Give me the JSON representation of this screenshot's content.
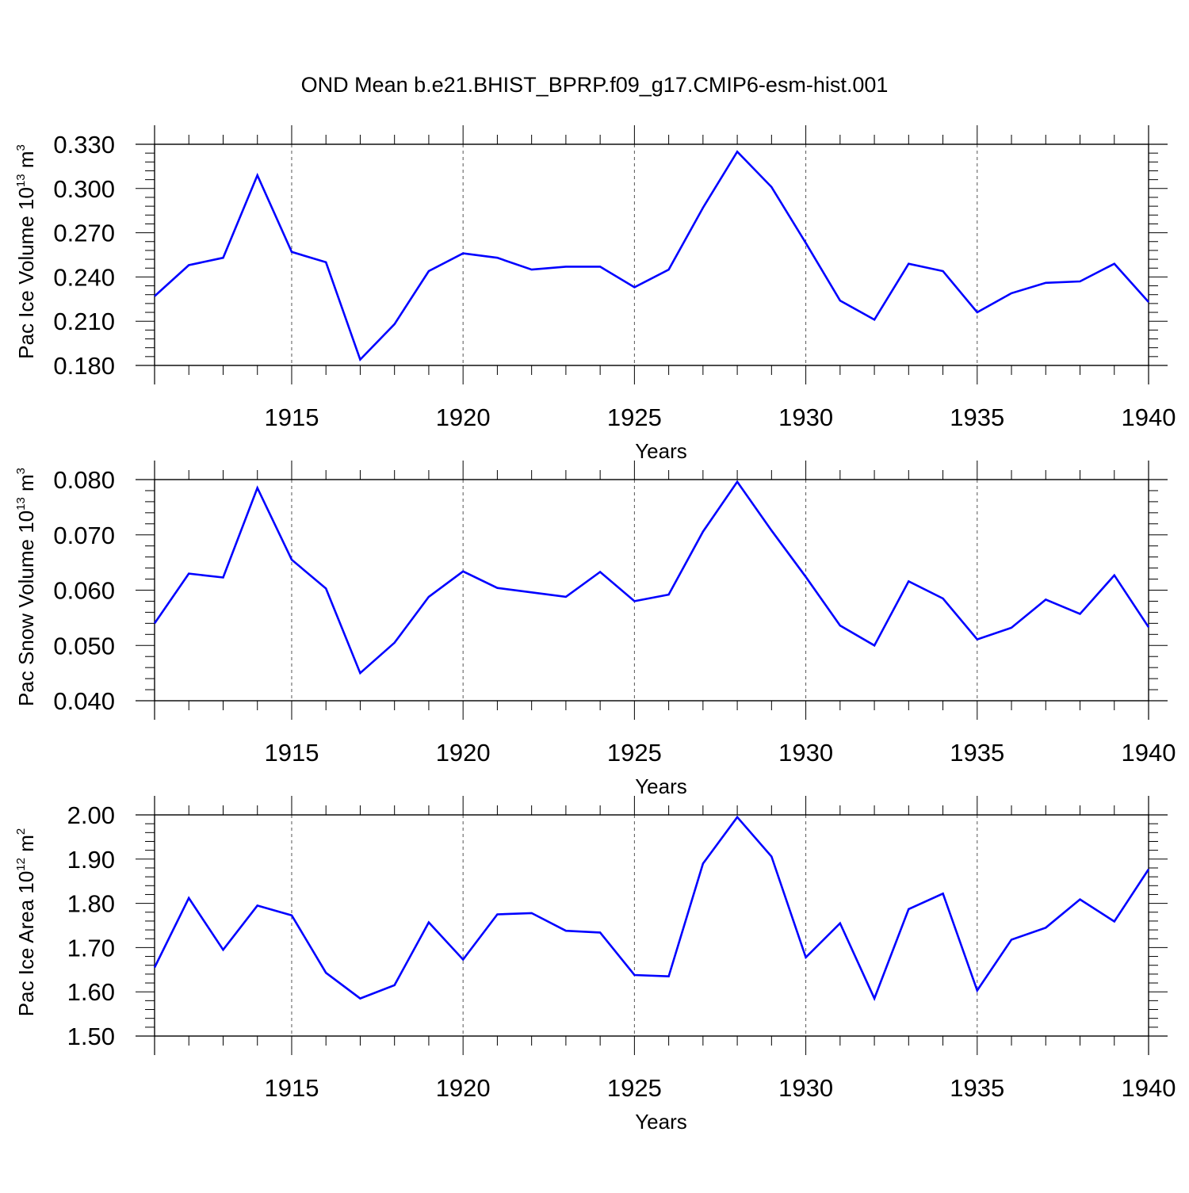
{
  "title": "OND Mean b.e21.BHIST_BPRP.f09_g17.CMIP6-esm-hist.001",
  "colors": {
    "line": "#0000ff",
    "axis": "#000000",
    "grid": "#555555"
  },
  "chart_data": [
    {
      "type": "line",
      "xlabel": "Years",
      "ylabel": {
        "text": "Pac Ice Volume 10",
        "exp": "13",
        "unit": " m",
        "unit_exp": "3"
      },
      "xlim": [
        1911,
        1940
      ],
      "ylim": [
        0.18,
        0.33
      ],
      "x_ticks": [
        "1915",
        "1920",
        "1925",
        "1930",
        "1935",
        "1940"
      ],
      "y_ticks": [
        "0.180",
        "0.210",
        "0.240",
        "0.270",
        "0.300",
        "0.330"
      ],
      "grid": "vertical dashed at major x ticks",
      "x": [
        1911,
        1912,
        1913,
        1914,
        1915,
        1916,
        1917,
        1918,
        1919,
        1920,
        1921,
        1922,
        1923,
        1924,
        1925,
        1926,
        1927,
        1928,
        1929,
        1930,
        1931,
        1932,
        1933,
        1934,
        1935,
        1936,
        1937,
        1938,
        1939,
        1940
      ],
      "series": [
        {
          "values": [
            0.227,
            0.248,
            0.253,
            0.309,
            0.257,
            0.25,
            0.184,
            0.208,
            0.244,
            0.256,
            0.253,
            0.245,
            0.247,
            0.247,
            0.233,
            0.245,
            0.287,
            0.325,
            0.301,
            0.263,
            0.224,
            0.211,
            0.249,
            0.244,
            0.216,
            0.229,
            0.236,
            0.237,
            0.249,
            0.223
          ]
        }
      ]
    },
    {
      "type": "line",
      "xlabel": "Years",
      "ylabel": {
        "text": "Pac Snow Volume 10",
        "exp": "13",
        "unit": " m",
        "unit_exp": "3"
      },
      "xlim": [
        1911,
        1940
      ],
      "ylim": [
        0.04,
        0.08
      ],
      "x_ticks": [
        "1915",
        "1920",
        "1925",
        "1930",
        "1935",
        "1940"
      ],
      "y_ticks": [
        "0.040",
        "0.050",
        "0.060",
        "0.070",
        "0.080"
      ],
      "grid": "vertical dashed at major x ticks",
      "x": [
        1911,
        1912,
        1913,
        1914,
        1915,
        1916,
        1917,
        1918,
        1919,
        1920,
        1921,
        1922,
        1923,
        1924,
        1925,
        1926,
        1927,
        1928,
        1929,
        1930,
        1931,
        1932,
        1933,
        1934,
        1935,
        1936,
        1937,
        1938,
        1939,
        1940
      ],
      "series": [
        {
          "values": [
            0.054,
            0.063,
            0.0623,
            0.0785,
            0.0655,
            0.0603,
            0.045,
            0.0505,
            0.0588,
            0.0634,
            0.0604,
            0.0596,
            0.0588,
            0.0633,
            0.058,
            0.0592,
            0.0706,
            0.0796,
            0.0708,
            0.0624,
            0.0536,
            0.05,
            0.0616,
            0.0585,
            0.0511,
            0.0532,
            0.0583,
            0.0557,
            0.0627,
            0.0533
          ]
        }
      ]
    },
    {
      "type": "line",
      "xlabel": "Years",
      "ylabel": {
        "text": "Pac Ice Area 10",
        "exp": "12",
        "unit": " m",
        "unit_exp": "2"
      },
      "xlim": [
        1911,
        1940
      ],
      "ylim": [
        1.5,
        2.0
      ],
      "x_ticks": [
        "1915",
        "1920",
        "1925",
        "1930",
        "1935",
        "1940"
      ],
      "y_ticks": [
        "1.50",
        "1.60",
        "1.70",
        "1.80",
        "1.90",
        "2.00"
      ],
      "grid": "vertical dashed at major x ticks",
      "x": [
        1911,
        1912,
        1913,
        1914,
        1915,
        1916,
        1917,
        1918,
        1919,
        1920,
        1921,
        1922,
        1923,
        1924,
        1925,
        1926,
        1927,
        1928,
        1929,
        1930,
        1931,
        1932,
        1933,
        1934,
        1935,
        1936,
        1937,
        1938,
        1939,
        1940
      ],
      "series": [
        {
          "values": [
            1.655,
            1.812,
            1.695,
            1.795,
            1.773,
            1.643,
            1.585,
            1.615,
            1.757,
            1.673,
            1.775,
            1.778,
            1.738,
            1.734,
            1.638,
            1.635,
            1.89,
            1.995,
            1.906,
            1.678,
            1.755,
            1.585,
            1.787,
            1.822,
            1.603,
            1.718,
            1.745,
            1.809,
            1.759,
            1.877
          ]
        }
      ]
    }
  ]
}
